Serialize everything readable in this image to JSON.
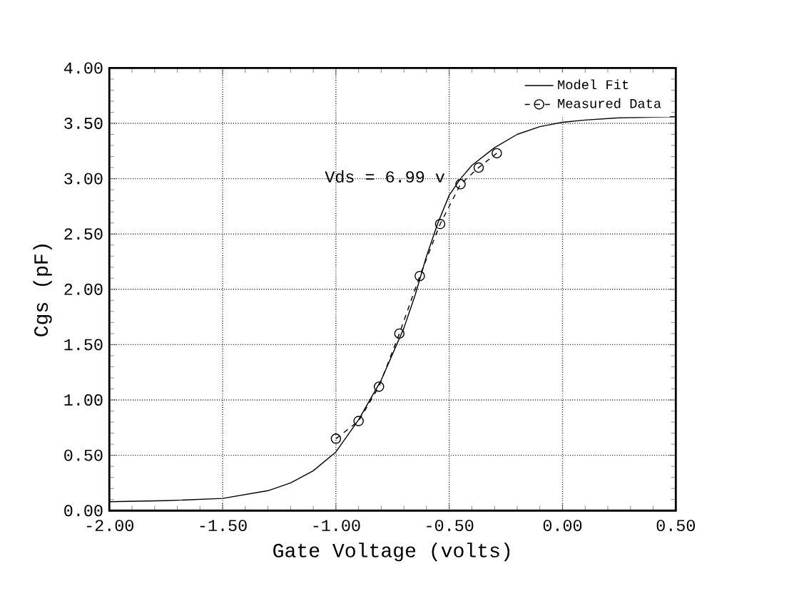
{
  "chart_data": {
    "type": "line",
    "xlabel": "Gate Voltage (volts)",
    "ylabel": "Cgs (pF)",
    "xlim": [
      -2.0,
      0.5
    ],
    "ylim": [
      0,
      4
    ],
    "xticks": [
      {
        "value": -2,
        "label": "-2.00"
      },
      {
        "value": -1.5,
        "label": "-1.50"
      },
      {
        "value": -1,
        "label": "-1.00"
      },
      {
        "value": -0.5,
        "label": "-0.50"
      },
      {
        "value": 0,
        "label": "0.00"
      },
      {
        "value": 0.5,
        "label": "0.50"
      }
    ],
    "yticks": [
      {
        "value": 0,
        "label": "0.00"
      },
      {
        "value": 0.5,
        "label": "0.50"
      },
      {
        "value": 1,
        "label": "1.00"
      },
      {
        "value": 1.5,
        "label": "1.50"
      },
      {
        "value": 2,
        "label": "2.00"
      },
      {
        "value": 2.5,
        "label": "2.50"
      },
      {
        "value": 3,
        "label": "3.00"
      },
      {
        "value": 3.5,
        "label": "3.50"
      },
      {
        "value": 4,
        "label": "4.00"
      }
    ],
    "grid": true,
    "legend": "top right",
    "annotations": [
      "Vds = 6.99 v"
    ],
    "series": [
      {
        "name": "Model Fit",
        "color": "#000000",
        "line_style": "solid",
        "marker": "none",
        "x": [
          -2.0,
          -1.75,
          -1.5,
          -1.3,
          -1.2,
          -1.1,
          -1.0,
          -0.9,
          -0.8,
          -0.7,
          -0.65,
          -0.6,
          -0.55,
          -0.5,
          -0.45,
          -0.4,
          -0.3,
          -0.2,
          -0.1,
          0.0,
          0.1,
          0.25,
          0.5
        ],
        "values": [
          0.08,
          0.09,
          0.11,
          0.18,
          0.25,
          0.36,
          0.53,
          0.82,
          1.18,
          1.65,
          1.95,
          2.3,
          2.6,
          2.85,
          3.0,
          3.12,
          3.28,
          3.4,
          3.47,
          3.51,
          3.53,
          3.55,
          3.56
        ]
      },
      {
        "name": "Measured Data",
        "color": "#000000",
        "line_style": "dashed",
        "marker": "circle",
        "x": [
          -1.0,
          -0.9,
          -0.81,
          -0.72,
          -0.63,
          -0.54,
          -0.45,
          -0.37,
          -0.29
        ],
        "values": [
          0.65,
          0.81,
          1.12,
          1.6,
          2.12,
          2.59,
          2.95,
          3.1,
          3.23
        ]
      }
    ]
  }
}
